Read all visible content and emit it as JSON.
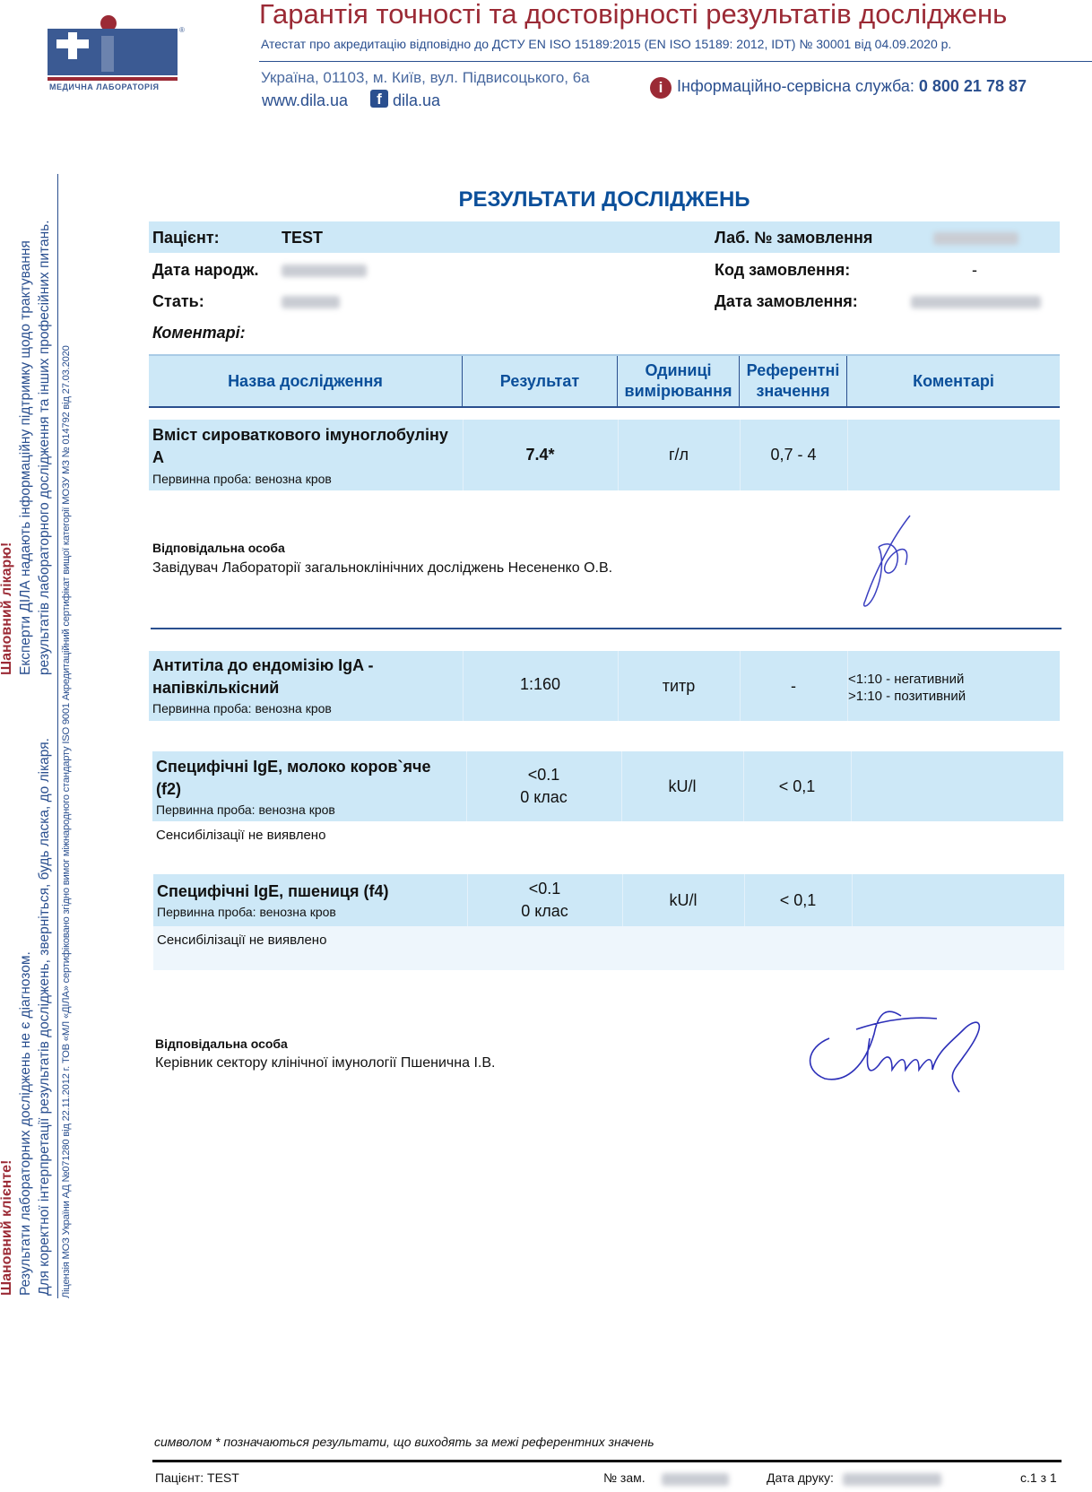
{
  "header": {
    "logo_text": "Діла",
    "logo_subtitle": "МЕДИЧНА ЛАБОРАТОРІЯ",
    "title": "Гарантія точності та достовірності результатів досліджень",
    "accreditation": "Атестат про акредитацію відповідно до ДСТУ EN ISO 15189:2015 (EN ISO 15189: 2012, IDT) № 30001 від 04.09.2020 р.",
    "address": "Україна, 01103, м. Київ, вул. Підвисоцького, 6а",
    "website": "www.dila.ua",
    "facebook": "dila.ua",
    "service_label": "Інформаційно-сервісна служба:",
    "service_phone": "0 800 21 78 87"
  },
  "sidebar": {
    "doctor_title": "Шановний лікарю!",
    "doctor_line1": "Експерти ДІЛА  надають інформаційну підтримку щодо трактування",
    "doctor_line2": "результатів лабораторного дослідження та інших професійних питань.",
    "client_title": "Шановний клієнте!",
    "client_line1": "Результати лабораторних досліджень не є діагнозом.",
    "client_line2": "Для коректної інтерпретації результатів досліджень, зверніться, будь ласка, до лікаря.",
    "license": "Ліцензія МОЗ України АД №071280 від 22.11.2012 г.    ТОВ «МЛ «ДІЛА» сертифіковано згідно вимог міжнародного стандарту ISO 9001   Акредитаційний сертифікат вищої категорії МОЗУ МЗ № 014792 від 27.03.2020"
  },
  "report": {
    "heading": "РЕЗУЛЬТАТИ ДОСЛІДЖЕНЬ",
    "patient_label": "Пацієнт:",
    "patient_value": "TEST",
    "lab_no_label": "Лаб. № замовлення",
    "dob_label": "Дата народж.",
    "order_code_label": "Код замовлення:",
    "order_code_value": "-",
    "sex_label": "Стать:",
    "order_date_label": "Дата замовлення:",
    "comments_label": "Коментарі:"
  },
  "table": {
    "headers": [
      "Назва дослідження",
      "Результат",
      "Одиниці вимірювання",
      "Референтні значення",
      "Коментарі"
    ],
    "rows": [
      {
        "name": "Вміст сироваткового імуноглобуліну А",
        "sample": "Первинна проба: венозна кров",
        "result": "7.4*",
        "units": "г/л",
        "reference": "0,7 - 4",
        "comment": ""
      },
      {
        "name": "Антитіла до ендомізію IgA - напівкількісний",
        "sample": "Первинна проба: венозна кров",
        "result": "1:160",
        "units": "титр",
        "reference": "-",
        "comment1": "<1:10 - негативний",
        "comment2": ">1:10 - позитивний"
      },
      {
        "name": "Специфічні IgE, молоко коров`яче (f2)",
        "sample": "Первинна проба: венозна кров",
        "result1": "<0.1",
        "result2": "0 клас",
        "units": "kU/l",
        "reference": "< 0,1",
        "note": "Сенсибілізації не виявлено"
      },
      {
        "name": "Специфічні IgE, пшениця (f4)",
        "sample": "Первинна проба: венозна кров",
        "result1": "<0.1",
        "result2": "0 клас",
        "units": "kU/l",
        "reference": "< 0,1",
        "note": "Сенсибілізації не виявлено"
      }
    ]
  },
  "responsible": [
    {
      "label": "Відповідальна особа",
      "name": "Завідувач Лабораторії загальноклінічних досліджень Несененко О.В."
    },
    {
      "label": "Відповідальна особа",
      "name": "Керівник сектору клінічної імунології Пшенична І.В."
    }
  ],
  "footer": {
    "footnote": "символом * позначаються результати, що виходять за межі референтних значень",
    "patient": "Пацієнт: TEST",
    "order_no_label": "№ зам.",
    "print_date_label": "Дата друку:",
    "page": "с.1 з 1"
  },
  "colors": {
    "brand_blue": "#2a4f8f",
    "brand_red": "#9b2a35",
    "row_bg": "#cde8f7",
    "heading": "#0b4f9a"
  }
}
